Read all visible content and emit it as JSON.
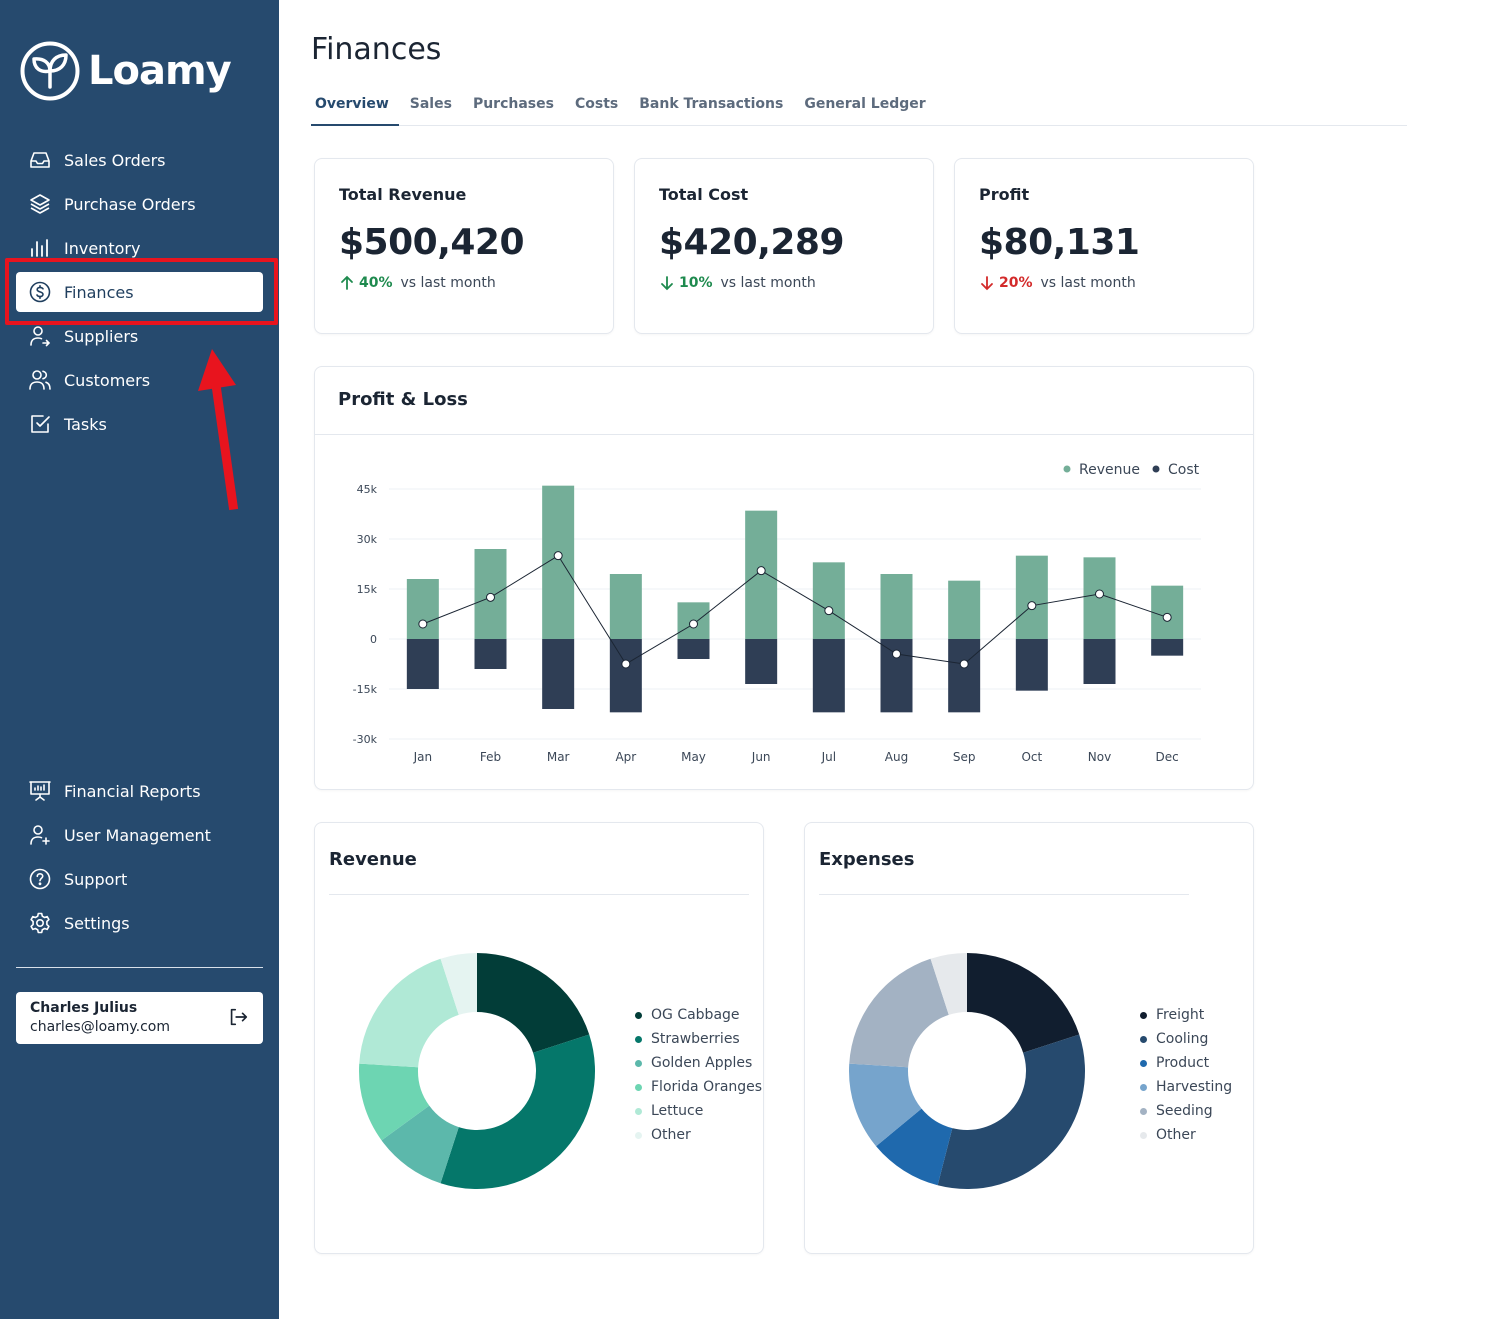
{
  "brand": {
    "name": "Loamy"
  },
  "sidebar": {
    "items": [
      {
        "label": "Sales Orders",
        "icon": "inbox-icon"
      },
      {
        "label": "Purchase Orders",
        "icon": "layers-icon"
      },
      {
        "label": "Inventory",
        "icon": "bar-chart-icon"
      },
      {
        "label": "Finances",
        "icon": "dollar-circle-icon",
        "active": true
      },
      {
        "label": "Suppliers",
        "icon": "user-arrow-icon"
      },
      {
        "label": "Customers",
        "icon": "users-icon"
      },
      {
        "label": "Tasks",
        "icon": "checkbox-icon"
      }
    ],
    "bottom_items": [
      {
        "label": "Financial Reports",
        "icon": "presentation-icon"
      },
      {
        "label": "User Management",
        "icon": "user-plus-icon"
      },
      {
        "label": "Support",
        "icon": "help-circle-icon"
      },
      {
        "label": "Settings",
        "icon": "gear-icon"
      }
    ],
    "user": {
      "name": "Charles Julius",
      "email": "charles@loamy.com"
    }
  },
  "page": {
    "title": "Finances",
    "tabs": [
      "Overview",
      "Sales",
      "Purchases",
      "Costs",
      "Bank Transactions",
      "General Ledger"
    ],
    "active_tab": "Overview"
  },
  "stats": [
    {
      "label": "Total Revenue",
      "value": "$500,420",
      "change": "40%",
      "direction": "up",
      "color": "#1e8a4e",
      "suffix": "vs last month"
    },
    {
      "label": "Total Cost",
      "value": "$420,289",
      "change": "10%",
      "direction": "down",
      "color": "#1e8a4e",
      "suffix": "vs last month"
    },
    {
      "label": "Profit",
      "value": "$80,131",
      "change": "20%",
      "direction": "down",
      "color": "#d32a2a",
      "suffix": "vs last month"
    }
  ],
  "profit_loss": {
    "title": "Profit & Loss",
    "legend": [
      {
        "name": "Revenue",
        "color": "#74ae98"
      },
      {
        "name": "Cost",
        "color": "#2f3e55"
      }
    ]
  },
  "revenue_card": {
    "title": "Revenue",
    "legend": [
      {
        "name": "OG Cabbage",
        "color": "#023d38"
      },
      {
        "name": "Strawberries",
        "color": "#05776a"
      },
      {
        "name": "Golden Apples",
        "color": "#5cb8ab"
      },
      {
        "name": "Florida Oranges",
        "color": "#6dd5b2"
      },
      {
        "name": "Lettuce",
        "color": "#b0e9d6"
      },
      {
        "name": "Other",
        "color": "#e5f4f1"
      }
    ]
  },
  "expenses_card": {
    "title": "Expenses",
    "legend": [
      {
        "name": "Freight",
        "color": "#111e2f"
      },
      {
        "name": "Cooling",
        "color": "#264a6e"
      },
      {
        "name": "Product",
        "color": "#1f69ad"
      },
      {
        "name": "Harvesting",
        "color": "#76a4cc"
      },
      {
        "name": "Seeding",
        "color": "#a3b2c3"
      },
      {
        "name": "Other",
        "color": "#e6e9ec"
      }
    ]
  },
  "chart_data": [
    {
      "type": "bar",
      "title": "Profit & Loss",
      "categories": [
        "Jan",
        "Feb",
        "Mar",
        "Apr",
        "May",
        "Jun",
        "Jul",
        "Aug",
        "Sep",
        "Oct",
        "Nov",
        "Dec"
      ],
      "series": [
        {
          "name": "Revenue",
          "type": "bar",
          "values": [
            18000,
            27000,
            46000,
            19500,
            11000,
            38500,
            23000,
            19500,
            17500,
            25000,
            24500,
            16000
          ]
        },
        {
          "name": "Cost",
          "type": "bar",
          "values": [
            -15000,
            -9000,
            -21000,
            -22000,
            -6000,
            -13500,
            -22000,
            -22000,
            -22000,
            -15500,
            -13500,
            -5000
          ]
        },
        {
          "type": "line",
          "values": [
            4500,
            12500,
            25000,
            -7500,
            4500,
            20500,
            8500,
            -4500,
            -7500,
            10000,
            13500,
            6500
          ]
        }
      ],
      "yticks": [
        "45k",
        "30k",
        "15k",
        "0",
        "-15k",
        "-30k"
      ],
      "ylim": [
        -30000,
        45000
      ],
      "grid": true,
      "legend_position": "top-right"
    },
    {
      "type": "pie",
      "title": "Revenue",
      "categories": [
        "OG Cabbage",
        "Strawberries",
        "Golden Apples",
        "Florida Oranges",
        "Lettuce",
        "Other"
      ],
      "values": [
        20,
        35,
        10,
        11,
        19,
        5
      ]
    },
    {
      "type": "pie",
      "title": "Expenses",
      "categories": [
        "Freight",
        "Cooling",
        "Product",
        "Harvesting",
        "Seeding",
        "Other"
      ],
      "values": [
        20,
        34,
        10,
        12,
        19,
        5
      ]
    }
  ]
}
